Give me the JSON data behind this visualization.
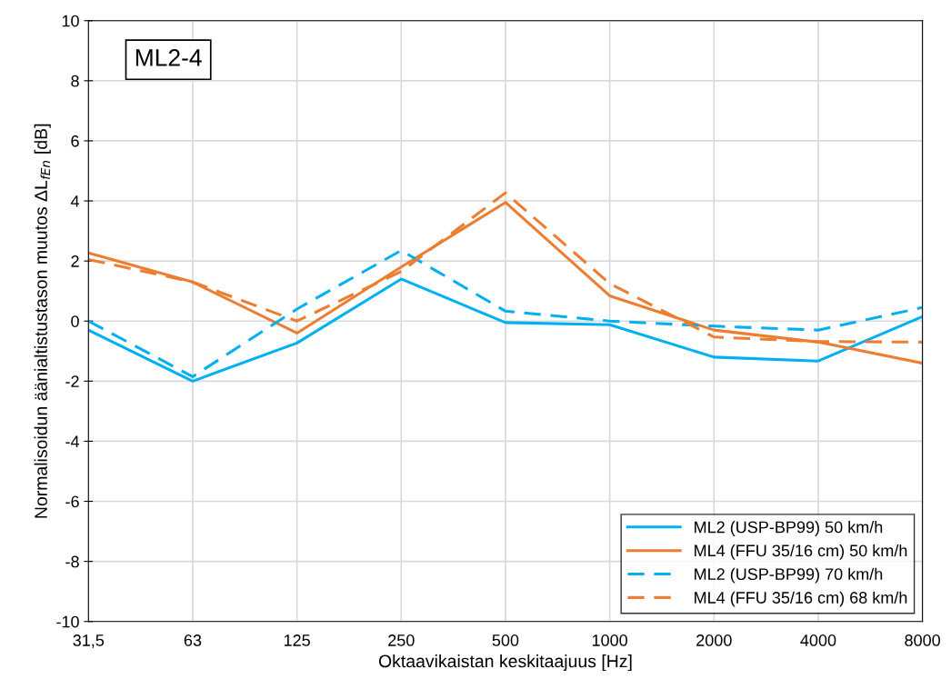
{
  "chart_data": {
    "type": "line",
    "xlabel": "Oktaavikaistan keskitaajuus [Hz]",
    "ylabel": "Normalisoidun äänialtistustason muutos ΔL$_{fEn}$ [dB]",
    "annotations": [
      "ML2-4"
    ],
    "categories": [
      "31,5",
      "63",
      "125",
      "250",
      "500",
      "1000",
      "2000",
      "4000",
      "8000"
    ],
    "series": [
      {
        "name": "ML2 (USP-BP99) 50 km/h",
        "color": "#00b0f0",
        "line_style": "solid",
        "values": [
          -0.3,
          -2.0,
          -0.73,
          1.4,
          -0.05,
          -0.12,
          -1.2,
          -1.33,
          0.15
        ]
      },
      {
        "name": "ML4 (FFU 35/16 cm) 50 km/h",
        "color": "#ed7d31",
        "line_style": "solid",
        "values": [
          2.27,
          1.3,
          -0.4,
          1.8,
          3.95,
          0.84,
          -0.3,
          -0.7,
          -1.4
        ]
      },
      {
        "name": "ML2 (USP-BP99) 70 km/h",
        "color": "#00b0f0",
        "line_style": "dashed",
        "values": [
          0.0,
          -1.85,
          0.4,
          2.35,
          0.33,
          0.0,
          -0.17,
          -0.3,
          0.45
        ]
      },
      {
        "name": "ML4 (FFU 35/16 cm) 68 km/h",
        "color": "#ed7d31",
        "line_style": "dashed",
        "values": [
          2.05,
          1.3,
          0.0,
          1.65,
          4.27,
          1.25,
          -0.53,
          -0.68,
          -0.7
        ]
      }
    ],
    "ylim": [
      -10,
      10
    ],
    "yticks": [
      -10,
      -8,
      -6,
      -4,
      -2,
      0,
      2,
      4,
      6,
      8,
      10
    ],
    "grid": true,
    "legend": "bottom right",
    "marker": "none"
  }
}
